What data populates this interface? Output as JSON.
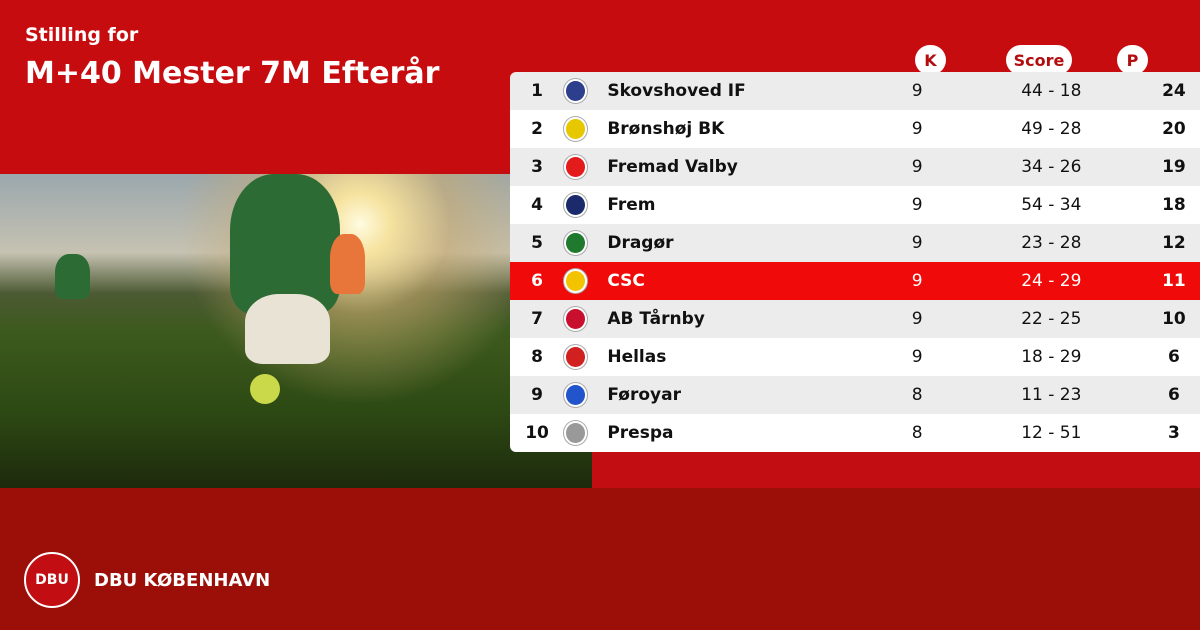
{
  "header": {
    "subtitle": "Stilling for",
    "title": "M+40 Mester 7M Efterår"
  },
  "columns": {
    "k": "K",
    "score": "Score",
    "p": "P"
  },
  "rows": [
    {
      "pos": "1",
      "team": "Skovshoved IF",
      "k": "9",
      "score": "44 - 18",
      "p": "24",
      "color": "#2c3e8c"
    },
    {
      "pos": "2",
      "team": "Brønshøj BK",
      "k": "9",
      "score": "49 - 28",
      "p": "20",
      "color": "#e6c700"
    },
    {
      "pos": "3",
      "team": "Fremad Valby",
      "k": "9",
      "score": "34 - 26",
      "p": "19",
      "color": "#e31b1b"
    },
    {
      "pos": "4",
      "team": "Frem",
      "k": "9",
      "score": "54 - 34",
      "p": "18",
      "color": "#1b2a6b"
    },
    {
      "pos": "5",
      "team": "Dragør",
      "k": "9",
      "score": "23 - 28",
      "p": "12",
      "color": "#1f7a2e"
    },
    {
      "pos": "6",
      "team": "CSC",
      "k": "9",
      "score": "24 - 29",
      "p": "11",
      "color": "#f3c300",
      "highlight": true
    },
    {
      "pos": "7",
      "team": "AB Tårnby",
      "k": "9",
      "score": "22 - 25",
      "p": "10",
      "color": "#c8102e"
    },
    {
      "pos": "8",
      "team": "Hellas",
      "k": "9",
      "score": "18 - 29",
      "p": "6",
      "color": "#d12020"
    },
    {
      "pos": "9",
      "team": "Føroyar",
      "k": "8",
      "score": "11 - 23",
      "p": "6",
      "color": "#2255cc"
    },
    {
      "pos": "10",
      "team": "Prespa",
      "k": "8",
      "score": "12 - 51",
      "p": "3",
      "color": "#999999"
    }
  ],
  "footer": {
    "seal": "DBU",
    "brand": "DBU KØBENHAVN"
  },
  "colors": {
    "top": "#c70c10",
    "bottom": "#9c0f08",
    "highlight": "#f00a0a"
  }
}
